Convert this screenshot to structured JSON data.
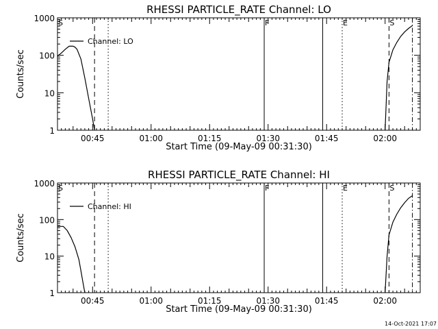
{
  "footer": {
    "timestamp": "14-Oct-2021 17:07"
  },
  "chart_data": [
    {
      "type": "line",
      "title": "RHESSI PARTICLE_RATE Channel: LO",
      "xlabel": "Start Time (09-May-09 00:31:30)",
      "ylabel": "Counts/sec",
      "yscale": "log",
      "ylim": [
        1,
        1000
      ],
      "xlim": [
        "00:36:00",
        "02:09:00"
      ],
      "x_tick_labels": [
        "00:45",
        "01:00",
        "01:15",
        "01:30",
        "01:45",
        "02:00"
      ],
      "y_tick_labels": [
        "1",
        "10",
        "100",
        "1000"
      ],
      "markers": [
        {
          "label": "S",
          "time": "00:36:00",
          "style": "none"
        },
        {
          "label": "",
          "time": "00:45:30",
          "style": "dashed"
        },
        {
          "label": "",
          "time": "00:49:00",
          "style": "dotted"
        },
        {
          "label": "F",
          "time": "01:29:00",
          "style": "solid"
        },
        {
          "label": "",
          "time": "01:44:00",
          "style": "solid"
        },
        {
          "label": "E",
          "time": "01:49:00",
          "style": "dotted"
        },
        {
          "label": "S",
          "time": "02:01:00",
          "style": "dashed"
        },
        {
          "label": "",
          "time": "02:07:00",
          "style": "dashdot"
        }
      ],
      "legend": {
        "position": "top-left"
      },
      "series": [
        {
          "name": "Channel: LO",
          "segments": [
            [
              {
                "x": "00:36:00",
                "y": 95
              },
              {
                "x": "00:37:00",
                "y": 115
              },
              {
                "x": "00:38:00",
                "y": 145
              },
              {
                "x": "00:39:00",
                "y": 175
              },
              {
                "x": "00:40:00",
                "y": 175
              },
              {
                "x": "00:40:30",
                "y": 165
              },
              {
                "x": "00:41:00",
                "y": 145
              },
              {
                "x": "00:42:00",
                "y": 80
              },
              {
                "x": "00:43:00",
                "y": 25
              },
              {
                "x": "00:44:00",
                "y": 7
              },
              {
                "x": "00:45:00",
                "y": 2
              },
              {
                "x": "00:45:30",
                "y": 1
              }
            ],
            [
              {
                "x": "02:00:00",
                "y": 1
              },
              {
                "x": "02:00:30",
                "y": 20
              },
              {
                "x": "02:01:00",
                "y": 65
              },
              {
                "x": "02:02:00",
                "y": 140
              },
              {
                "x": "02:03:00",
                "y": 220
              },
              {
                "x": "02:04:00",
                "y": 320
              },
              {
                "x": "02:05:00",
                "y": 420
              },
              {
                "x": "02:06:00",
                "y": 520
              },
              {
                "x": "02:07:00",
                "y": 620
              }
            ]
          ]
        }
      ]
    },
    {
      "type": "line",
      "title": "RHESSI PARTICLE_RATE Channel: HI",
      "xlabel": "Start Time (09-May-09 00:31:30)",
      "ylabel": "Counts/sec",
      "yscale": "log",
      "ylim": [
        1,
        1000
      ],
      "xlim": [
        "00:36:00",
        "02:09:00"
      ],
      "x_tick_labels": [
        "00:45",
        "01:00",
        "01:15",
        "01:30",
        "01:45",
        "02:00"
      ],
      "y_tick_labels": [
        "1",
        "10",
        "100",
        "1000"
      ],
      "markers": [
        {
          "label": "S",
          "time": "00:36:00",
          "style": "none"
        },
        {
          "label": "",
          "time": "00:45:30",
          "style": "dashed"
        },
        {
          "label": "",
          "time": "00:49:00",
          "style": "dotted"
        },
        {
          "label": "F",
          "time": "01:29:00",
          "style": "solid"
        },
        {
          "label": "",
          "time": "01:44:00",
          "style": "solid"
        },
        {
          "label": "E",
          "time": "01:49:00",
          "style": "dotted"
        },
        {
          "label": "S",
          "time": "02:01:00",
          "style": "dashed"
        },
        {
          "label": "",
          "time": "02:07:00",
          "style": "dashdot"
        }
      ],
      "legend": {
        "position": "top-left"
      },
      "series": [
        {
          "name": "Channel: HI",
          "segments": [
            [
              {
                "x": "00:36:00",
                "y": 65
              },
              {
                "x": "00:37:30",
                "y": 65
              },
              {
                "x": "00:38:30",
                "y": 50
              },
              {
                "x": "00:39:30",
                "y": 32
              },
              {
                "x": "00:40:30",
                "y": 18
              },
              {
                "x": "00:41:30",
                "y": 8
              },
              {
                "x": "00:42:00",
                "y": 4
              },
              {
                "x": "00:42:30",
                "y": 2
              },
              {
                "x": "00:43:00",
                "y": 1
              }
            ],
            [
              {
                "x": "02:00:00",
                "y": 1
              },
              {
                "x": "02:00:30",
                "y": 10
              },
              {
                "x": "02:01:00",
                "y": 38
              },
              {
                "x": "02:02:00",
                "y": 85
              },
              {
                "x": "02:03:00",
                "y": 140
              },
              {
                "x": "02:04:00",
                "y": 210
              },
              {
                "x": "02:05:00",
                "y": 290
              },
              {
                "x": "02:06:00",
                "y": 380
              },
              {
                "x": "02:07:00",
                "y": 450
              }
            ]
          ]
        }
      ]
    }
  ]
}
